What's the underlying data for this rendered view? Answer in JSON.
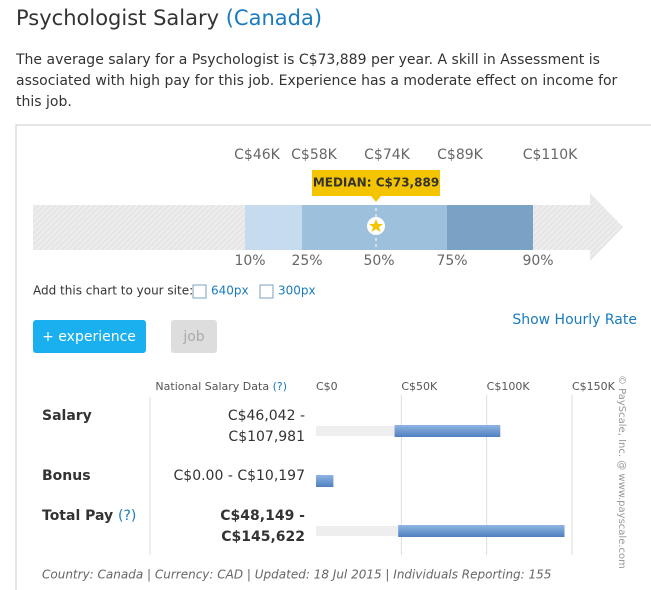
{
  "header": {
    "title": "Psychologist Salary",
    "location": "(Canada)"
  },
  "description": "The average salary for a Psychologist is C$73,889 per year. A skill in Assessment is associated with high pay for this job. Experience has a moderate effect on income for this job.",
  "percentile_chart": {
    "salary_labels": [
      "C$46K",
      "C$58K",
      "C$74K",
      "C$89K",
      "C$110K"
    ],
    "percentile_labels": [
      "10%",
      "25%",
      "50%",
      "75%",
      "90%"
    ],
    "median_label": "MEDIAN: C$73,889"
  },
  "embed": {
    "text": "Add this chart to your site:",
    "links": [
      "640px",
      "300px"
    ]
  },
  "buttons": [
    "+ experience",
    "job"
  ],
  "hourly_link": "Show Hourly Rate",
  "table": {
    "header": "National Salary Data",
    "header_help": "(?)",
    "xlim": [
      0,
      150000
    ],
    "xticks": [
      {
        "value": 0,
        "label": "C$0"
      },
      {
        "value": 50000,
        "label": "C$50K"
      },
      {
        "value": 100000,
        "label": "C$100K"
      },
      {
        "value": 150000,
        "label": "C$150K"
      }
    ],
    "rows": [
      {
        "label": "Salary",
        "range_label": [
          "C$46,042 -",
          "C$107,981"
        ],
        "low": 46042,
        "high": 107981
      },
      {
        "label": "Bonus",
        "range_label": [
          "C$0.00 - C$10,197"
        ],
        "low": 0,
        "high": 10197
      },
      {
        "label": "Total Pay",
        "help": "(?)",
        "range_label": [
          "C$48,149 -",
          "C$145,622"
        ],
        "low": 48149,
        "high": 145622
      }
    ]
  },
  "footer": "Country: Canada | Currency: CAD | Updated: 18 Jul 2015 | Individuals Reporting: 155",
  "copyright": "© PayScale, Inc. @ www.payscale.com"
}
